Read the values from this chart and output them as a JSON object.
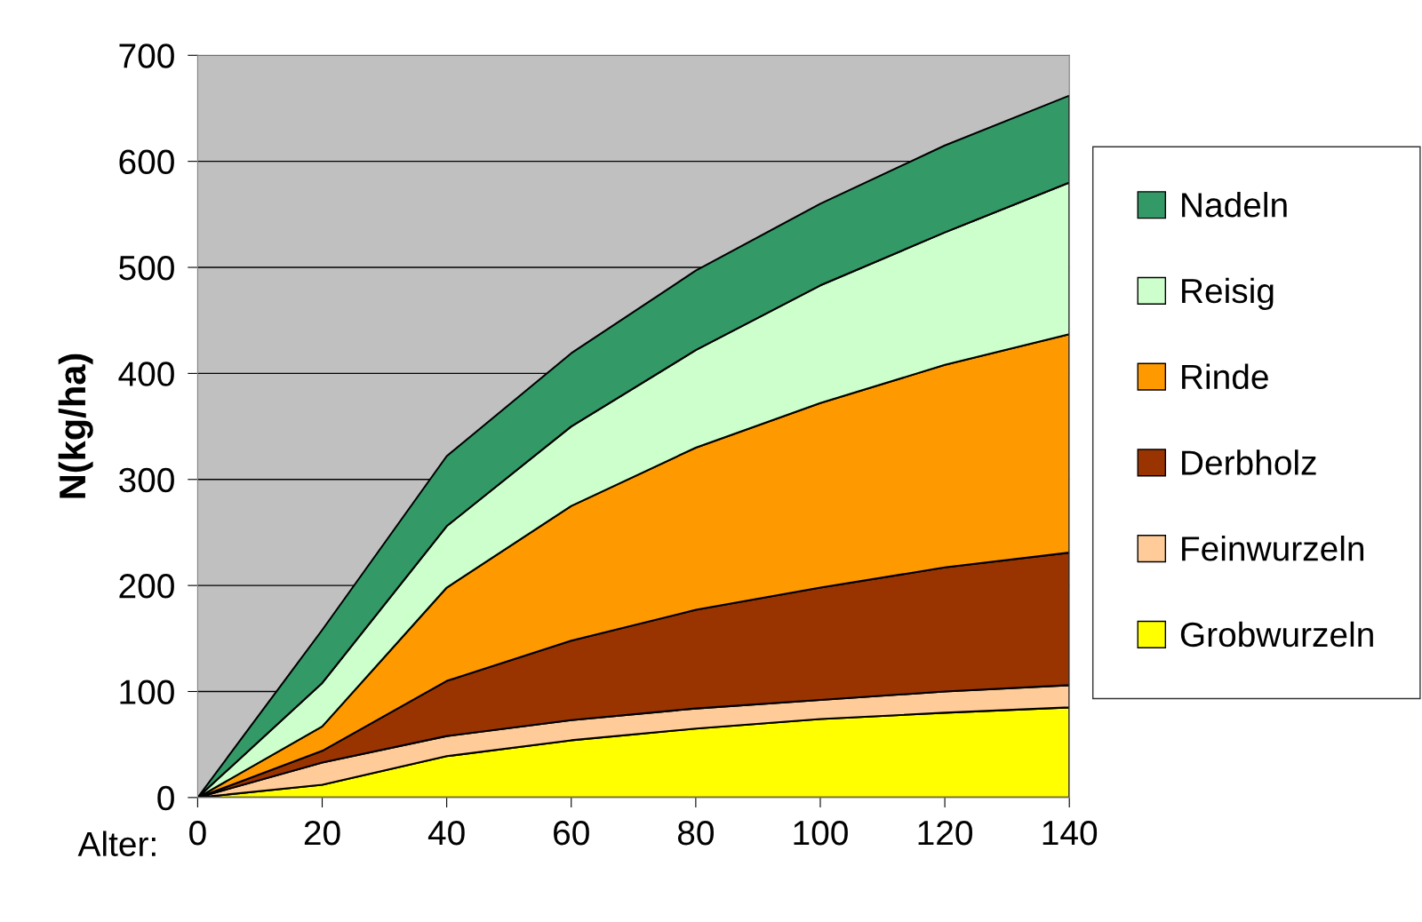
{
  "chart_data": {
    "type": "area",
    "stacked": true,
    "xlabel": "Alter:",
    "ylabel": "N(kg/ha)",
    "x": [
      0,
      20,
      40,
      60,
      80,
      100,
      120,
      140
    ],
    "series": [
      {
        "name": "Grobwurzeln",
        "color": "#ffff00",
        "values": [
          0,
          12,
          39,
          54,
          65,
          74,
          80,
          85
        ]
      },
      {
        "name": "Feinwurzeln",
        "color": "#ffcc99",
        "values": [
          0,
          21,
          19,
          19,
          19,
          18,
          20,
          21
        ]
      },
      {
        "name": "Derbholz",
        "color": "#993300",
        "values": [
          0,
          11,
          52,
          75,
          93,
          106,
          117,
          125
        ]
      },
      {
        "name": "Rinde",
        "color": "#ff9900",
        "values": [
          0,
          23,
          88,
          127,
          153,
          174,
          191,
          206
        ]
      },
      {
        "name": "Reisig",
        "color": "#ccffcc",
        "values": [
          0,
          41,
          58,
          75,
          92,
          111,
          125,
          143
        ]
      },
      {
        "name": "Nadeln",
        "color": "#339966",
        "values": [
          0,
          50,
          66,
          69,
          75,
          77,
          82,
          82
        ]
      }
    ],
    "xlim": [
      0,
      140
    ],
    "xticks": [
      0,
      20,
      40,
      60,
      80,
      100,
      120,
      140
    ],
    "ylim": [
      0,
      700
    ],
    "yticks": [
      0,
      100,
      200,
      300,
      400,
      500,
      600,
      700
    ],
    "grid": "y",
    "legend": "right"
  }
}
